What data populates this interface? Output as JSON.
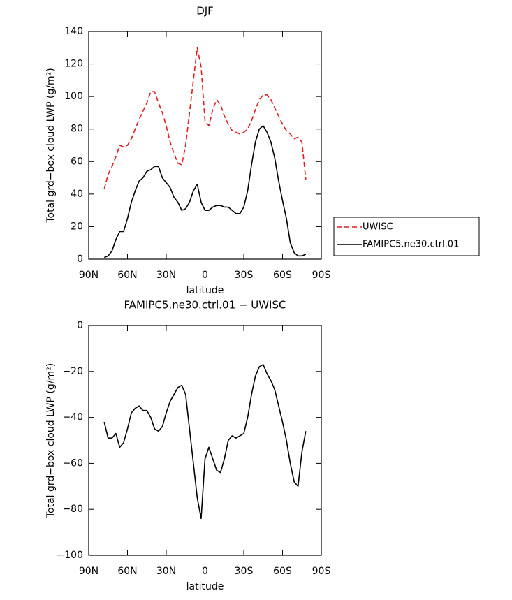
{
  "chart_data": [
    {
      "type": "line",
      "title": "DJF",
      "xlabel": "latitude",
      "ylabel": "Total grd−box cloud LWP (g/m²)",
      "xlim": [
        90,
        -90
      ],
      "xticks": [
        {
          "value": 90,
          "label": "90N"
        },
        {
          "value": 60,
          "label": "60N"
        },
        {
          "value": 30,
          "label": "30N"
        },
        0,
        {
          "value": -30,
          "label": "30S"
        },
        {
          "value": -60,
          "label": "60S"
        },
        {
          "value": -90,
          "label": "90S"
        }
      ],
      "ylim": [
        0,
        140
      ],
      "yticks": [
        0,
        20,
        40,
        60,
        80,
        100,
        120,
        140
      ],
      "x": [
        78,
        75,
        72,
        69,
        66,
        63,
        60,
        57,
        54,
        51,
        48,
        45,
        42,
        39,
        36,
        33,
        30,
        27,
        24,
        21,
        18,
        15,
        12,
        9,
        6,
        3,
        0,
        -3,
        -6,
        -9,
        -12,
        -15,
        -18,
        -21,
        -24,
        -27,
        -30,
        -33,
        -36,
        -39,
        -42,
        -45,
        -48,
        -51,
        -54,
        -57,
        -60,
        -63,
        -66,
        -69,
        -72,
        -75,
        -78
      ],
      "legend": "right",
      "series": [
        {
          "name": "UWISC",
          "color": "#e41a1c",
          "dashed": true,
          "values": [
            43,
            52,
            57,
            63,
            70,
            69,
            70,
            74,
            80,
            86,
            91,
            96,
            103,
            103,
            96,
            90,
            82,
            72,
            65,
            59,
            58,
            70,
            90,
            110,
            130,
            118,
            85,
            82,
            92,
            98,
            95,
            88,
            83,
            79,
            78,
            77,
            78,
            80,
            85,
            92,
            98,
            101,
            101,
            98,
            93,
            88,
            83,
            79,
            77,
            74,
            75,
            72,
            49
          ]
        },
        {
          "name": "FAMIPC5.ne30.ctrl.01",
          "color": "#000000",
          "dashed": false,
          "values": [
            1,
            2,
            5,
            12,
            17,
            17,
            25,
            35,
            42,
            48,
            50,
            54,
            55,
            57,
            57,
            50,
            47,
            44,
            38,
            35,
            30,
            31,
            35,
            42,
            46,
            35,
            30,
            30,
            32,
            33,
            33,
            32,
            32,
            30,
            28,
            28,
            32,
            42,
            58,
            72,
            80,
            82,
            78,
            72,
            62,
            48,
            36,
            25,
            10,
            4,
            2,
            2,
            3
          ]
        }
      ]
    },
    {
      "type": "line",
      "title": "FAMIPC5.ne30.ctrl.01 − UWISC",
      "xlabel": "latitude",
      "ylabel": "Total grd−box cloud LWP (g/m²)",
      "xlim": [
        90,
        -90
      ],
      "xticks": [
        {
          "value": 90,
          "label": "90N"
        },
        {
          "value": 60,
          "label": "60N"
        },
        {
          "value": 30,
          "label": "30N"
        },
        0,
        {
          "value": -30,
          "label": "30S"
        },
        {
          "value": -60,
          "label": "60S"
        },
        {
          "value": -90,
          "label": "90S"
        }
      ],
      "ylim": [
        -100,
        0
      ],
      "yticks": [
        0,
        {
          "value": -20,
          "label": "−20"
        },
        {
          "value": -40,
          "label": "−40"
        },
        {
          "value": -60,
          "label": "−60"
        },
        {
          "value": -80,
          "label": "−80"
        },
        {
          "value": -100,
          "label": "−100"
        }
      ],
      "x": [
        78,
        75,
        72,
        69,
        66,
        63,
        60,
        57,
        54,
        51,
        48,
        45,
        42,
        39,
        36,
        33,
        30,
        27,
        24,
        21,
        18,
        15,
        12,
        9,
        6,
        3,
        0,
        -3,
        -6,
        -9,
        -12,
        -15,
        -18,
        -21,
        -24,
        -27,
        -30,
        -33,
        -36,
        -39,
        -42,
        -45,
        -48,
        -51,
        -54,
        -57,
        -60,
        -63,
        -66,
        -69,
        -72,
        -75,
        -78
      ],
      "series": [
        {
          "color": "#000000",
          "dashed": false,
          "values": [
            -42,
            -49,
            -49,
            -47,
            -53,
            -51,
            -45,
            -38,
            -36,
            -35,
            -37,
            -37,
            -40,
            -45,
            -46,
            -44,
            -38,
            -33,
            -30,
            -27,
            -26,
            -30,
            -45,
            -60,
            -75,
            -84,
            -58,
            -53,
            -58,
            -63,
            -64,
            -58,
            -50,
            -48,
            -49,
            -48,
            -47,
            -40,
            -30,
            -22,
            -18,
            -17,
            -21,
            -24,
            -28,
            -35,
            -42,
            -50,
            -60,
            -68,
            -70,
            -55,
            -46
          ]
        }
      ]
    }
  ]
}
